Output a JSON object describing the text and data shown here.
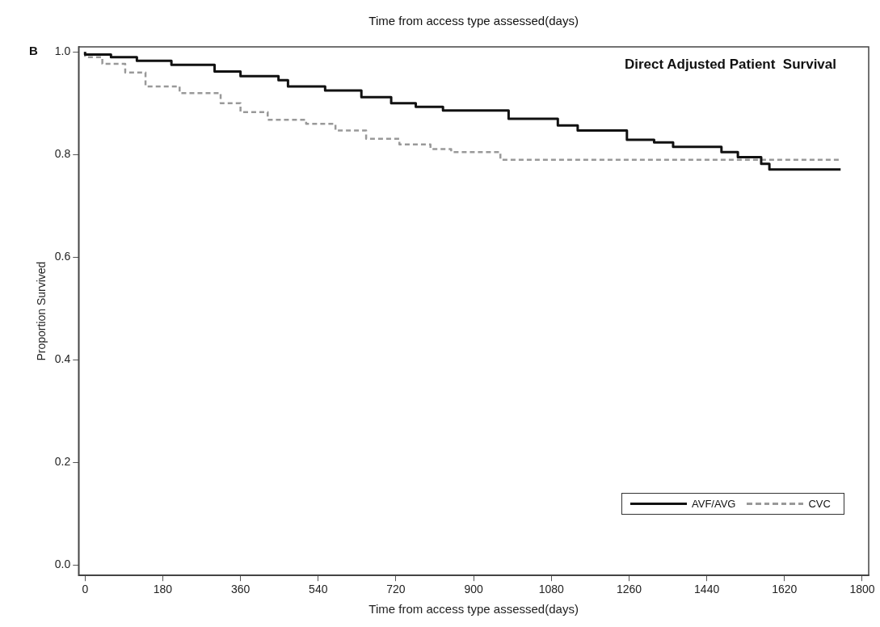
{
  "chart_data": {
    "type": "step",
    "title": "Direct Adjusted Patient  Survival",
    "xlabel": "Time from access type assessed(days)",
    "ylabel": "Proportion Survived",
    "annotations": [
      "Time from access type assessed(days)",
      "B"
    ],
    "xlim": [
      -15,
      1815
    ],
    "xticks": [
      0,
      180,
      360,
      540,
      720,
      900,
      1080,
      1260,
      1440,
      1620,
      1800
    ],
    "ylim": [
      -0.02,
      1.01
    ],
    "yticks": [
      {
        "value": 0,
        "label": "0.0"
      },
      0.2,
      0.4,
      0.6,
      0.8,
      {
        "value": 1,
        "label": "1.0"
      }
    ],
    "grid": false,
    "legend": "bottom right",
    "marker": "none",
    "series": [
      {
        "name": "AVF/AVG",
        "color": "#111111",
        "line_style": "solid",
        "x": [
          0,
          60,
          120,
          200,
          300,
          360,
          448,
          470,
          556,
          640,
          709,
          766,
          829,
          981,
          1095,
          1141,
          1255,
          1318,
          1362,
          1474,
          1512,
          1566,
          1585,
          1743,
          1750
        ],
        "values": [
          1.0,
          0.995,
          0.99,
          0.983,
          0.975,
          0.962,
          0.953,
          0.945,
          0.933,
          0.925,
          0.912,
          0.9,
          0.893,
          0.886,
          0.87,
          0.857,
          0.847,
          0.829,
          0.824,
          0.815,
          0.805,
          0.795,
          0.782,
          0.771,
          0.771
        ]
      },
      {
        "name": "CVC",
        "color": "#999999",
        "line_style": "dashed",
        "x": [
          0,
          40,
          93,
          140,
          219,
          314,
          360,
          423,
          512,
          580,
          651,
          728,
          800,
          848,
          962,
          1007,
          1750
        ],
        "values": [
          1.0,
          0.99,
          0.977,
          0.96,
          0.933,
          0.92,
          0.9,
          0.883,
          0.868,
          0.86,
          0.847,
          0.831,
          0.82,
          0.811,
          0.805,
          0.79,
          0.79
        ]
      }
    ]
  }
}
